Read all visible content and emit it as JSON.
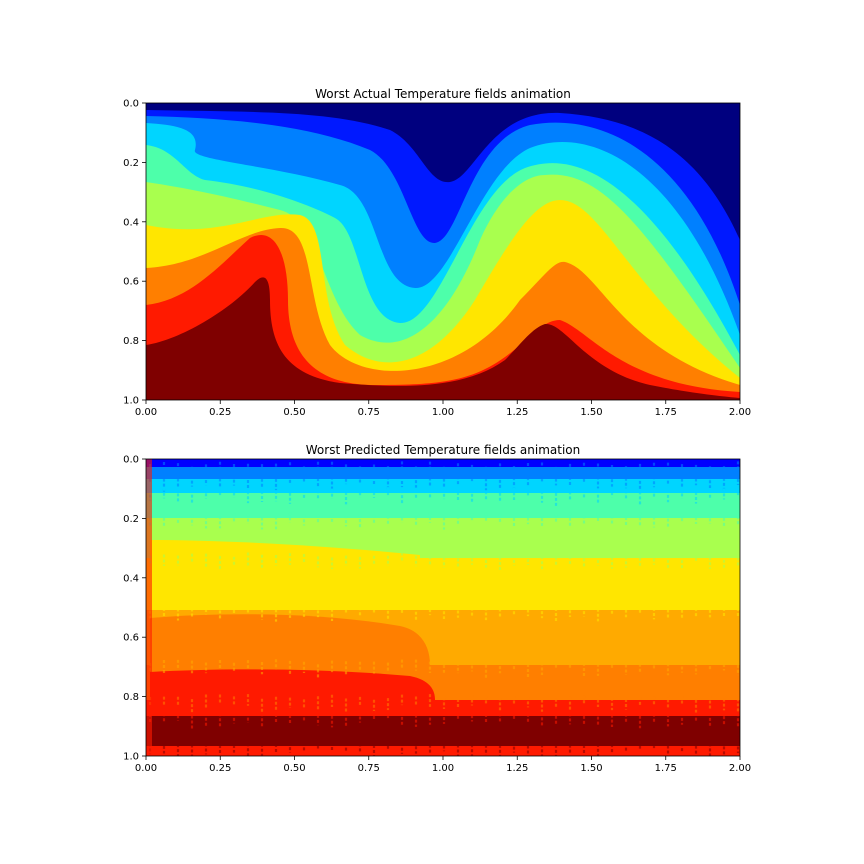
{
  "chart_data": [
    {
      "type": "heatmap",
      "title": "Worst Actual Temperature fields animation",
      "xlabel": "",
      "ylabel": "",
      "xlim": [
        0,
        2
      ],
      "ylim": [
        1,
        0
      ],
      "xticks": [
        "0.00",
        "0.25",
        "0.50",
        "0.75",
        "1.00",
        "1.25",
        "1.50",
        "1.75",
        "2.00"
      ],
      "yticks": [
        "0.0",
        "0.2",
        "0.4",
        "0.6",
        "0.8",
        "1.0"
      ],
      "colormap": "jet",
      "levels": 9,
      "colors": [
        "#00007f",
        "#0019ff",
        "#0080ff",
        "#00d5ff",
        "#4dffaa",
        "#a9ff4e",
        "#ffe600",
        "#ff7f00",
        "#ff1a00",
        "#7f0000"
      ],
      "field": "convective temperature field with two rising plumes and a sinking plume at x=1.0"
    },
    {
      "type": "heatmap",
      "title": "Worst Predicted Temperature fields animation",
      "xlabel": "",
      "ylabel": "",
      "xlim": [
        0,
        2
      ],
      "ylim": [
        1,
        0
      ],
      "xticks": [
        "0.00",
        "0.25",
        "0.50",
        "0.75",
        "1.00",
        "1.25",
        "1.50",
        "1.75",
        "2.00"
      ],
      "yticks": [
        "0.0",
        "0.2",
        "0.4",
        "0.6",
        "0.8",
        "1.0"
      ],
      "colormap": "jet",
      "levels": 10,
      "colors": [
        "#0000ff",
        "#0080ff",
        "#00d5ff",
        "#4dffaa",
        "#a9ff4e",
        "#ffe600",
        "#ffaa00",
        "#ff7f00",
        "#ff1a00",
        "#7f0000"
      ],
      "field": "horizontally layered noisy temperature field"
    }
  ]
}
